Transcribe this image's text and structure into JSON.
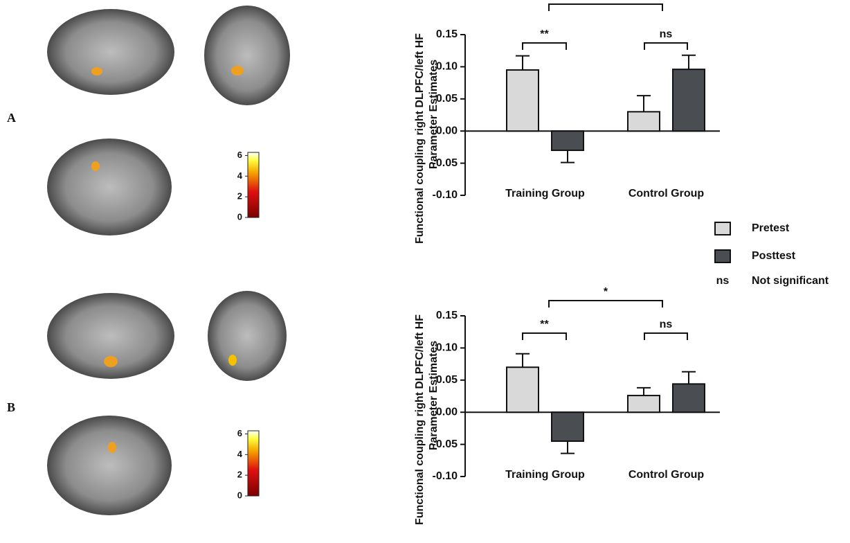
{
  "panels": [
    "A",
    "B"
  ],
  "colorbars": [
    {
      "ylim": [
        0,
        6.3
      ],
      "ticks": [
        0,
        2,
        4,
        6
      ]
    },
    {
      "ylim": [
        0,
        6.3
      ],
      "ticks": [
        0,
        2,
        4,
        6
      ]
    }
  ],
  "legend_note": {
    "symbol": "ns",
    "text": "Not significant"
  },
  "chart_data": [
    {
      "type": "bar",
      "ylabel": [
        "Functional coupling right DLPFC/left HF",
        "Parameter Estimates"
      ],
      "categories": [
        "Training Group",
        "Control Group"
      ],
      "series": [
        {
          "name": "Pretest",
          "color": "#d9d9d9",
          "values": [
            0.095,
            0.03
          ],
          "errors": [
            0.022,
            0.025
          ]
        },
        {
          "name": "Posttest",
          "color": "#4a4d52",
          "values": [
            -0.03,
            0.096
          ],
          "errors": [
            0.019,
            0.022
          ]
        }
      ],
      "ylim": [
        -0.1,
        0.15
      ],
      "yticks": [
        0.15,
        {
          "value": 0.1,
          "label": "0.10"
        },
        0.05,
        {
          "value": 0,
          "label": "0.00"
        },
        -0.05,
        {
          "value": -0.1,
          "label": "-0.10"
        }
      ],
      "annotations": [
        "**",
        "ns"
      ]
    },
    {
      "type": "bar",
      "ylabel": [
        "Functional coupling right DLPFC/left HF",
        "Parameter Estimates"
      ],
      "categories": [
        "Training Group",
        "Control Group"
      ],
      "series": [
        {
          "color": "#d9d9d9",
          "values": [
            0.07,
            0.026
          ],
          "errors": [
            0.021,
            0.012
          ]
        },
        {
          "color": "#4a4d52",
          "values": [
            -0.045,
            0.044
          ],
          "errors": [
            0.019,
            0.019
          ]
        }
      ],
      "ylim": [
        -0.1,
        0.15
      ],
      "yticks": [
        0.15,
        {
          "value": 0.1,
          "label": "0.10"
        },
        0.05,
        {
          "value": 0,
          "label": "0.00"
        },
        -0.05,
        {
          "value": -0.1,
          "label": "-0.10"
        }
      ],
      "annotations": [
        "**",
        "ns",
        "*"
      ]
    }
  ]
}
